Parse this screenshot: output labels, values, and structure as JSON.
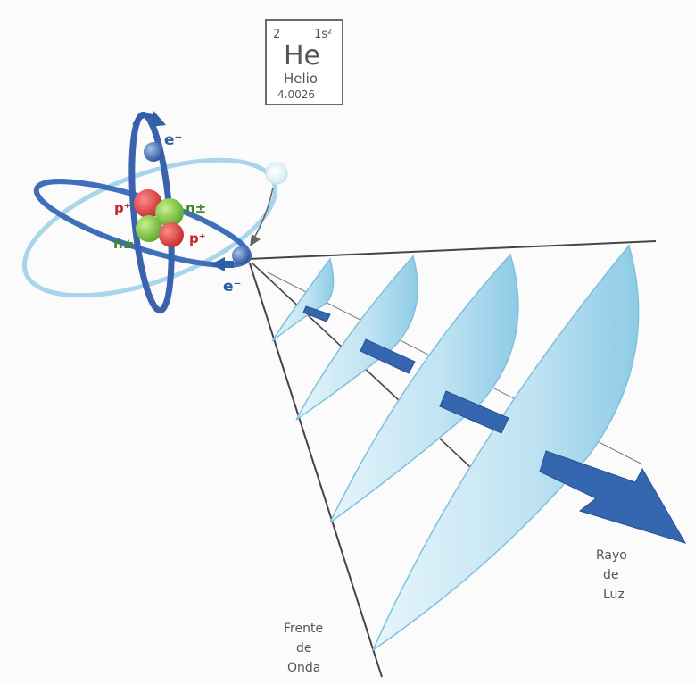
{
  "element_tile": {
    "atomic_number": "2",
    "electron_config": "1s²",
    "symbol": "He",
    "name": "Helio",
    "atomic_mass": "4.0026"
  },
  "atom_labels": {
    "electron_top": "e⁻",
    "electron_emitted": "e⁻",
    "proton_left": "p⁺",
    "proton_right": "p⁺",
    "neutron_right": "n±",
    "neutron_left": "n±"
  },
  "annotations": {
    "wavefront": [
      "Frente",
      "de",
      "Onda"
    ],
    "light_ray": [
      "Rayo",
      "de",
      "Luz"
    ]
  },
  "colors": {
    "proton": "#d23a3a",
    "neutron": "#7cc23a",
    "electron": "#2f5fa8",
    "orbit_dark": "#3f6fb8",
    "orbit_light": "#a8d4ec",
    "wave_fill": "#bfe3f2",
    "arrow": "#3566b0",
    "pencil": "#555555"
  }
}
